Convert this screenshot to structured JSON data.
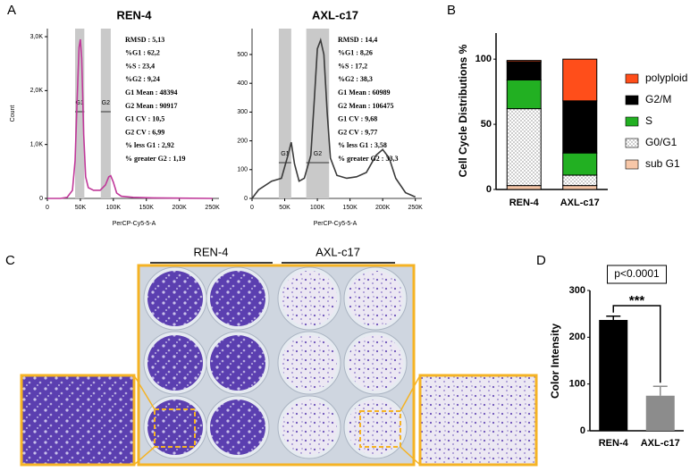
{
  "panel_labels": [
    "A",
    "B",
    "C",
    "D"
  ],
  "plate_image": {
    "group_labels": [
      "REN-4",
      "AXL-c17"
    ]
  },
  "chart_data": [
    {
      "type": "line",
      "title": "REN-4",
      "xlabel": "PerCP-Cy5-5-A",
      "ylabel": "Count",
      "xlim": [
        0,
        260000
      ],
      "ylim": [
        0,
        3150
      ],
      "xticks": [
        0,
        {
          "value": 50000,
          "label": "50K"
        },
        {
          "value": 100000,
          "label": "100K"
        },
        {
          "value": 150000,
          "label": "150K"
        },
        {
          "value": 200000,
          "label": "200K"
        },
        {
          "value": 250000,
          "label": "250K"
        }
      ],
      "yticks": [
        0,
        {
          "value": 1000,
          "label": "1,0K"
        },
        {
          "value": 2000,
          "label": "2,0K"
        },
        {
          "value": 3000,
          "label": "3,0K"
        }
      ],
      "x": [
        0,
        20000,
        30000,
        38000,
        42000,
        45000,
        48000,
        50000,
        52000,
        55000,
        58000,
        62000,
        70000,
        80000,
        88000,
        93000,
        96000,
        100000,
        105000,
        112000,
        130000,
        160000,
        200000,
        250000
      ],
      "series": [
        {
          "color": "#c0399a",
          "values": [
            0,
            0,
            20,
            150,
            700,
            1800,
            2800,
            2950,
            2600,
            1200,
            400,
            200,
            150,
            150,
            250,
            400,
            420,
            300,
            100,
            40,
            20,
            10,
            5,
            0
          ]
        }
      ],
      "gates": [
        {
          "label": "G1",
          "range": [
            42000,
            56000
          ]
        },
        {
          "label": "G2",
          "range": [
            81000,
            96000
          ]
        }
      ],
      "stats": [
        "RMSD : 5,13",
        "%G1 : 62,2",
        "%S : 23,4",
        "%G2 : 9,24",
        "G1 Mean : 48394",
        "G2 Mean : 90917",
        "G1 CV : 10,5",
        "G2 CV : 6,99",
        "% less G1 : 2,92",
        "% greater G2 : 1,19"
      ]
    },
    {
      "type": "line",
      "title": "AXL-c17",
      "xlabel": "PerCP-Cy5-5-A",
      "xlim": [
        0,
        260000
      ],
      "ylim": [
        0,
        590
      ],
      "xticks": [
        0,
        {
          "value": 50000,
          "label": "50K"
        },
        {
          "value": 100000,
          "label": "100K"
        },
        {
          "value": 150000,
          "label": "150K"
        },
        {
          "value": 200000,
          "label": "200K"
        },
        {
          "value": 250000,
          "label": "250K"
        }
      ],
      "yticks": [
        0,
        100,
        200,
        300,
        400,
        500
      ],
      "x": [
        0,
        10000,
        30000,
        45000,
        55000,
        60000,
        65000,
        72000,
        80000,
        90000,
        95000,
        100000,
        105000,
        110000,
        115000,
        120000,
        130000,
        145000,
        160000,
        175000,
        190000,
        200000,
        210000,
        220000,
        235000,
        250000
      ],
      "series": [
        {
          "color": "#3a3a3a",
          "values": [
            0,
            30,
            60,
            70,
            150,
            195,
            120,
            60,
            70,
            150,
            330,
            520,
            550,
            500,
            300,
            140,
            80,
            70,
            75,
            90,
            150,
            170,
            140,
            70,
            20,
            5
          ]
        }
      ],
      "gates": [
        {
          "label": "G1",
          "range": [
            41000,
            60000
          ]
        },
        {
          "label": "G2",
          "range": [
            83000,
            118000
          ]
        }
      ],
      "stats": [
        "RMSD : 14,4",
        "%G1 : 8,26",
        "%S : 17,2",
        "%G2 : 38,3",
        "G1 Mean : 60989",
        "G2 Mean : 106475",
        "G1 CV : 9,68",
        "G2 CV : 9,77",
        "% less G1 : 3,58",
        "% greater G2 : 33,3"
      ]
    },
    {
      "type": "stacked_bar",
      "ylabel": "Cell Cycle Distributions %",
      "categories": [
        "REN-4",
        "AXL-c17"
      ],
      "ylim": [
        0,
        120
      ],
      "yticks": [
        0,
        50,
        100
      ],
      "series": [
        {
          "name": "sub G1",
          "color": "#f7c7a8",
          "values": [
            3,
            3
          ]
        },
        {
          "name": "G0/G1",
          "color": "#ffffff",
          "pattern": "dots",
          "values": [
            59,
            8
          ]
        },
        {
          "name": "S",
          "color": "#22b022",
          "values": [
            22,
            17
          ]
        },
        {
          "name": "G2/M",
          "color": "#000000",
          "values": [
            14,
            40
          ]
        },
        {
          "name": "polyploid",
          "color": "#ff4e1a",
          "values": [
            1,
            32
          ]
        }
      ]
    },
    {
      "type": "bar",
      "ylabel": "Color Intensity",
      "categories": [
        "REN-4",
        "AXL-c17"
      ],
      "values": [
        237,
        75
      ],
      "errors": [
        8,
        20
      ],
      "colors": [
        "#000000",
        "#8c8c8c"
      ],
      "ylim": [
        0,
        300
      ],
      "yticks": [
        0,
        100,
        200,
        300
      ],
      "p_value": "p<0.0001",
      "significance": "***"
    }
  ]
}
